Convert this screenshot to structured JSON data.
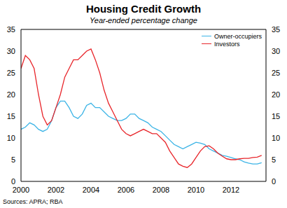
{
  "chart_data": {
    "type": "line",
    "title": "Housing Credit Growth",
    "subtitle": "Year-ended percentage change",
    "source": "Sources: APRA; RBA",
    "x": [
      2000,
      2000.25,
      2000.5,
      2000.75,
      2001,
      2001.25,
      2001.5,
      2001.75,
      2002,
      2002.25,
      2002.5,
      2002.75,
      2003,
      2003.25,
      2003.5,
      2003.75,
      2004,
      2004.25,
      2004.5,
      2004.75,
      2005,
      2005.25,
      2005.5,
      2005.75,
      2006,
      2006.25,
      2006.5,
      2006.75,
      2007,
      2007.25,
      2007.5,
      2007.75,
      2008,
      2008.25,
      2008.5,
      2008.75,
      2009,
      2009.25,
      2009.5,
      2009.75,
      2010,
      2010.25,
      2010.5,
      2010.75,
      2011,
      2011.25,
      2011.5,
      2011.75,
      2012,
      2012.25,
      2012.5,
      2012.75,
      2013,
      2013.25,
      2013.5,
      2013.75
    ],
    "series": [
      {
        "name": "Owner-occupiers",
        "color": "#3cb4e6",
        "values": [
          12,
          12.5,
          13.5,
          13,
          12,
          11.5,
          12,
          14,
          17,
          18.5,
          18.5,
          17,
          15,
          14.5,
          15.5,
          17.5,
          18,
          17,
          17,
          16,
          15,
          14.5,
          14,
          14,
          14.5,
          15.5,
          15.5,
          14.5,
          14,
          13.5,
          12.5,
          12,
          11.5,
          10.5,
          9.5,
          8.5,
          8,
          7.5,
          8,
          8.5,
          9,
          8.8,
          8.5,
          7.5,
          7,
          6.5,
          6,
          5.8,
          5.5,
          5.2,
          5,
          4.5,
          4.2,
          4,
          4,
          4.3
        ]
      },
      {
        "name": "Investors",
        "color": "#e8262b",
        "values": [
          26,
          29,
          28,
          26,
          20,
          15,
          13,
          14,
          17,
          20,
          24,
          26,
          28,
          28,
          29,
          30,
          30.5,
          28,
          25,
          21,
          18,
          16,
          14,
          12,
          11,
          10.5,
          11,
          11.5,
          12,
          11.5,
          11,
          11,
          10,
          9,
          7,
          5.5,
          4,
          3.5,
          3.2,
          4,
          5.5,
          7,
          8,
          8.2,
          7.5,
          6.5,
          5.8,
          5.2,
          5,
          5,
          5.2,
          5.3,
          5.3,
          5.5,
          5.6,
          6
        ]
      }
    ],
    "xlim": [
      2000,
      2014
    ],
    "xticks": [
      2000,
      2002,
      2004,
      2006,
      2008,
      2010,
      2012
    ],
    "ylim": [
      0,
      35
    ],
    "yticks": [
      0,
      5,
      10,
      15,
      20,
      25,
      30,
      35
    ],
    "y2lim": [
      0,
      35
    ],
    "y2ticks": [
      0,
      5,
      10,
      15,
      20,
      25,
      30,
      35
    ],
    "grid": false,
    "legend": "upper right"
  }
}
